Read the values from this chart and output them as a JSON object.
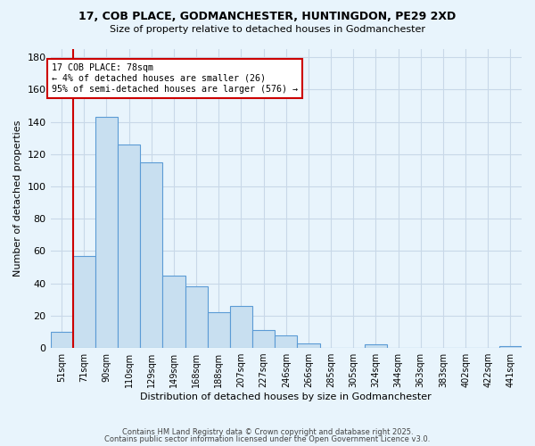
{
  "title_line1": "17, COB PLACE, GODMANCHESTER, HUNTINGDON, PE29 2XD",
  "title_line2": "Size of property relative to detached houses in Godmanchester",
  "xlabel": "Distribution of detached houses by size in Godmanchester",
  "ylabel": "Number of detached properties",
  "bar_labels": [
    "51sqm",
    "71sqm",
    "90sqm",
    "110sqm",
    "129sqm",
    "149sqm",
    "168sqm",
    "188sqm",
    "207sqm",
    "227sqm",
    "246sqm",
    "266sqm",
    "285sqm",
    "305sqm",
    "324sqm",
    "344sqm",
    "363sqm",
    "383sqm",
    "402sqm",
    "422sqm",
    "441sqm"
  ],
  "bar_heights": [
    10,
    57,
    143,
    126,
    115,
    45,
    38,
    22,
    26,
    11,
    8,
    3,
    0,
    0,
    2,
    0,
    0,
    0,
    0,
    0,
    1
  ],
  "bar_color": "#c8dff0",
  "bar_edge_color": "#5b9bd5",
  "vline_color": "#cc0000",
  "annotation_text": "17 COB PLACE: 78sqm\n← 4% of detached houses are smaller (26)\n95% of semi-detached houses are larger (576) →",
  "ylim": [
    0,
    185
  ],
  "yticks": [
    0,
    20,
    40,
    60,
    80,
    100,
    120,
    140,
    160,
    180
  ],
  "footer_line1": "Contains HM Land Registry data © Crown copyright and database right 2025.",
  "footer_line2": "Contains public sector information licensed under the Open Government Licence v3.0.",
  "background_color": "#e8f4fc",
  "grid_color": "#c8d8e8"
}
